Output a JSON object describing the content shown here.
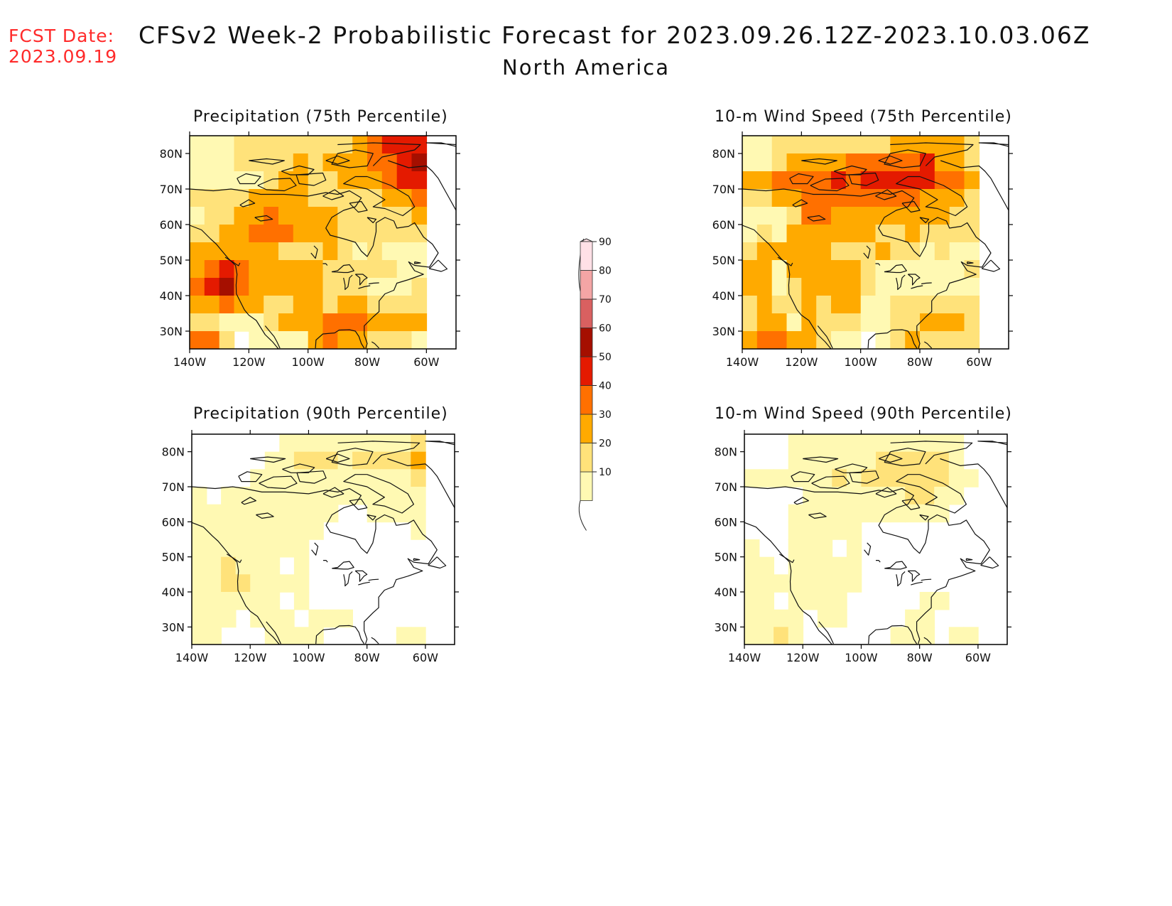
{
  "fcst_date": {
    "label": "FCST Date:",
    "value": "2023.09.19"
  },
  "title": {
    "line1": "CFSv2 Week-2 Probabilistic Forecast for 2023.09.26.12Z-2023.10.03.06Z",
    "line2": "North America"
  },
  "panels": [
    {
      "id": "precip75",
      "title": "Precipitation (75th Percentile)"
    },
    {
      "id": "wind75",
      "title": "10-m Wind Speed (75th Percentile)"
    },
    {
      "id": "precip90",
      "title": "Precipitation (90th Percentile)"
    },
    {
      "id": "wind90",
      "title": "10-m Wind Speed (90th Percentile)"
    }
  ],
  "axes": {
    "lat_labels": [
      "80N",
      "70N",
      "60N",
      "50N",
      "40N",
      "30N"
    ],
    "lat_values": [
      80,
      70,
      60,
      50,
      40,
      30
    ],
    "lon_labels": [
      "140W",
      "120W",
      "100W",
      "80W",
      "60W"
    ],
    "lon_values": [
      -140,
      -120,
      -100,
      -80,
      -60
    ],
    "lat_range": [
      25,
      85
    ],
    "lon_range": [
      -140,
      -50
    ]
  },
  "colorbar": {
    "levels": [
      "10",
      "20",
      "30",
      "40",
      "50",
      "60",
      "70",
      "80",
      "90"
    ],
    "colors": [
      "#fff9b3",
      "#ffe27a",
      "#ffaa00",
      "#ff7000",
      "#e41a00",
      "#a50f00",
      "#d96060",
      "#f4a5a5",
      "#ffe0e6"
    ]
  },
  "field_colors": {
    "0": "#ffffff",
    "1": "#fff9b3",
    "2": "#ffe27a",
    "3": "#ffaa00",
    "4": "#ff7000",
    "5": "#e41a00",
    "6": "#a50f00"
  },
  "fields": {
    "precip75": {
      "grid_lon_start": -140,
      "grid_lon_step": 5,
      "grid_lat_start": 85,
      "grid_lat_step": -5,
      "rows": [
        "1112222222234555",
        "1112222323334456",
        "1111123322333455",
        "2222333322222334",
        "1223343333222223",
        "2233444333222222",
        "3333332223212111",
        "3454333332222211",
        "4564333332221112",
        "3343322332332222",
        "2211123334443333",
        "4420111134332221",
        "3410111213321111"
      ]
    },
    "wind75": {
      "grid_lon_start": -140,
      "grid_lon_step": 5,
      "grid_lat_start": 85,
      "grid_lat_step": -5,
      "rows": [
        "1122222222333332",
        "1123333444445332",
        "3344445455555443",
        "2233444444443332",
        "1112443333333322",
        "1213333332232222",
        "2333332223221211",
        "3313333321111112",
        "3312333321111111",
        "2322323311222222",
        "2331322211223332",
        "3443321101232222",
        "3343421101232122"
      ]
    },
    "precip90": {
      "grid_lon_start": -140,
      "grid_lon_step": 5,
      "grid_lat_start": 85,
      "grid_lat_step": -5,
      "rows": [
        "0000001111111112",
        "0000011222122223",
        "0000111111111112",
        "1011111111111111",
        "1111111111001111",
        "1111111110000001",
        "1111111100000000",
        "1121110100000000",
        "1122111100000000",
        "1111110100000000",
        "1110111011100000",
        "1100011110000011",
        "1100011011000011"
      ]
    },
    "wind90": {
      "grid_lon_start": -140,
      "grid_lon_step": 5,
      "grid_lat_start": 85,
      "grid_lat_step": -5,
      "rows": [
        "0001111111111110",
        "0001111112222210",
        "1111112122222211",
        "0000111111122110",
        "0001111111111100",
        "0001111100000000",
        "1001110100000000",
        "1101111100000000",
        "1111111100000000",
        "1101111000001100",
        "1111011000011000",
        "1121000000111011",
        "1121100000100011"
      ]
    }
  },
  "coast_lines": [
    [
      [
        -140,
        70
      ],
      [
        -132,
        69.5
      ],
      [
        -126,
        70
      ],
      [
        -122,
        69.5
      ],
      [
        -116,
        68.5
      ],
      [
        -108,
        68.5
      ],
      [
        -100,
        68
      ],
      [
        -94,
        69
      ],
      [
        -90,
        68.5
      ],
      [
        -86,
        69.5
      ],
      [
        -82,
        67.5
      ],
      [
        -84,
        65
      ],
      [
        -88,
        64
      ],
      [
        -92,
        62
      ],
      [
        -94,
        59
      ],
      [
        -92.5,
        57
      ],
      [
        -88,
        56
      ],
      [
        -84,
        55
      ],
      [
        -82,
        52.5
      ],
      [
        -80,
        51
      ],
      [
        -78,
        54
      ],
      [
        -77,
        58
      ],
      [
        -77,
        60.5
      ],
      [
        -74,
        62
      ],
      [
        -71,
        61
      ],
      [
        -70,
        59
      ],
      [
        -66,
        59.5
      ],
      [
        -64,
        60.5
      ],
      [
        -61,
        56.5
      ],
      [
        -58,
        54.5
      ],
      [
        -56,
        52
      ],
      [
        -59,
        48
      ],
      [
        -64,
        48.5
      ],
      [
        -66,
        49.5
      ],
      [
        -64,
        47
      ],
      [
        -61,
        46
      ],
      [
        -66,
        44.5
      ],
      [
        -70,
        43.5
      ],
      [
        -71,
        41.5
      ],
      [
        -74,
        40.5
      ],
      [
        -76,
        38.5
      ],
      [
        -76,
        35.5
      ],
      [
        -78,
        34
      ],
      [
        -81,
        31.5
      ],
      [
        -81,
        29
      ],
      [
        -80,
        26.5
      ],
      [
        -80.5,
        25.2
      ]
    ],
    [
      [
        -140,
        59.8
      ],
      [
        -136,
        58.5
      ],
      [
        -133,
        56
      ],
      [
        -131,
        54.5
      ],
      [
        -129,
        52.5
      ],
      [
        -127,
        50.5
      ],
      [
        -124.5,
        48.5
      ],
      [
        -124,
        46
      ],
      [
        -124.3,
        43
      ],
      [
        -124.2,
        40.5
      ],
      [
        -123,
        38.5
      ],
      [
        -121.5,
        36
      ],
      [
        -120,
        34.5
      ],
      [
        -117.5,
        33
      ],
      [
        -116,
        31
      ],
      [
        -114.5,
        29
      ],
      [
        -112,
        27
      ],
      [
        -110,
        25
      ]
    ],
    [
      [
        -114.5,
        31.5
      ],
      [
        -113,
        30
      ],
      [
        -111.5,
        28.5
      ],
      [
        -110.5,
        27
      ],
      [
        -109.5,
        25.2
      ]
    ],
    [
      [
        -97.5,
        25.2
      ],
      [
        -97.3,
        27.5
      ],
      [
        -95,
        29.2
      ],
      [
        -91,
        29.5
      ],
      [
        -89.5,
        30.3
      ],
      [
        -86,
        30.4
      ],
      [
        -84,
        30
      ],
      [
        -82.8,
        28.5
      ],
      [
        -82,
        26.5
      ],
      [
        -81,
        25.2
      ]
    ],
    [
      [
        -76,
        25.2
      ],
      [
        -77.5,
        26.5
      ],
      [
        -78.5,
        27
      ]
    ],
    [
      [
        -123,
        49.2
      ],
      [
        -123.5,
        48.4
      ],
      [
        -125.5,
        49.5
      ],
      [
        -128,
        50.8
      ]
    ],
    [
      [
        -92,
        46.7
      ],
      [
        -90,
        47
      ],
      [
        -88,
        48.5
      ],
      [
        -86,
        48.7
      ],
      [
        -84.5,
        47
      ],
      [
        -86.5,
        46.5
      ],
      [
        -88,
        46.5
      ],
      [
        -92,
        46.7
      ]
    ],
    [
      [
        -88,
        45
      ],
      [
        -87.5,
        43
      ],
      [
        -87.5,
        41.7
      ],
      [
        -86.5,
        42.5
      ],
      [
        -86,
        45
      ],
      [
        -85,
        45.8
      ]
    ],
    [
      [
        -84,
        46
      ],
      [
        -82.5,
        45
      ],
      [
        -82.5,
        43
      ],
      [
        -81,
        44.5
      ],
      [
        -80,
        45
      ],
      [
        -81.5,
        46
      ],
      [
        -84,
        46
      ]
    ],
    [
      [
        -83,
        42
      ],
      [
        -81,
        42.5
      ],
      [
        -79,
        42.8
      ]
    ],
    [
      [
        -79.5,
        43.3
      ],
      [
        -78,
        43.5
      ],
      [
        -76,
        43.6
      ]
    ],
    [
      [
        -95,
        49
      ],
      [
        -94,
        49
      ],
      [
        -93.5,
        48.5
      ]
    ],
    [
      [
        -99,
        52
      ],
      [
        -97.5,
        50.5
      ],
      [
        -96.8,
        53
      ],
      [
        -98,
        54
      ]
    ],
    [
      [
        -118,
        62
      ],
      [
        -114,
        62.5
      ],
      [
        -112,
        61.5
      ],
      [
        -116,
        61
      ],
      [
        -118,
        62
      ]
    ],
    [
      [
        -123,
        65.5
      ],
      [
        -120,
        67
      ],
      [
        -118,
        66
      ],
      [
        -122,
        65
      ],
      [
        -123,
        65.5
      ]
    ],
    [
      [
        -124,
        73
      ],
      [
        -121,
        74.3
      ],
      [
        -116,
        73.5
      ],
      [
        -118,
        71.5
      ],
      [
        -123,
        71.5
      ],
      [
        -124,
        73
      ]
    ],
    [
      [
        -117,
        71
      ],
      [
        -112,
        72.8
      ],
      [
        -106,
        73
      ],
      [
        -104,
        71
      ],
      [
        -108,
        69.5
      ],
      [
        -114,
        69.8
      ],
      [
        -117,
        71
      ]
    ],
    [
      [
        -109,
        75
      ],
      [
        -103,
        76.5
      ],
      [
        -98,
        75.5
      ],
      [
        -100,
        74
      ],
      [
        -106,
        74
      ],
      [
        -109,
        75
      ]
    ],
    [
      [
        -104,
        74
      ],
      [
        -95,
        74.5
      ],
      [
        -94,
        72.5
      ],
      [
        -98,
        71
      ],
      [
        -103,
        71.5
      ],
      [
        -104,
        74
      ]
    ],
    [
      [
        -90,
        80
      ],
      [
        -84,
        81
      ],
      [
        -78,
        80
      ],
      [
        -80,
        76.5
      ],
      [
        -86,
        76
      ],
      [
        -92,
        77
      ],
      [
        -90,
        80
      ]
    ],
    [
      [
        -80,
        73.5
      ],
      [
        -72,
        71
      ],
      [
        -66,
        68
      ],
      [
        -64,
        65
      ],
      [
        -68,
        62.5
      ],
      [
        -74,
        64.5
      ],
      [
        -78,
        65
      ],
      [
        -74,
        67
      ],
      [
        -80,
        70
      ],
      [
        -88,
        71.5
      ],
      [
        -84,
        73.5
      ],
      [
        -80,
        73.5
      ]
    ],
    [
      [
        -90,
        82.5
      ],
      [
        -78,
        83
      ],
      [
        -62,
        82.5
      ],
      [
        -64,
        81
      ],
      [
        -75,
        79
      ],
      [
        -78,
        76.5
      ]
    ],
    [
      [
        -73,
        78
      ],
      [
        -66,
        76
      ],
      [
        -60,
        76.5
      ],
      [
        -58,
        75
      ],
      [
        -56,
        73
      ],
      [
        -54,
        70
      ],
      [
        -52,
        67
      ],
      [
        -50,
        64
      ]
    ],
    [
      [
        -86,
        66
      ],
      [
        -82,
        66.5
      ],
      [
        -80,
        64
      ],
      [
        -83,
        63.5
      ],
      [
        -86,
        66
      ]
    ],
    [
      [
        -80,
        62
      ],
      [
        -78,
        60.5
      ],
      [
        -77,
        61.5
      ],
      [
        -80,
        62
      ]
    ],
    [
      [
        -64,
        49.5
      ],
      [
        -62,
        49.2
      ],
      [
        -64,
        49
      ],
      [
        -64,
        49.5
      ]
    ],
    [
      [
        -95,
        68
      ],
      [
        -91,
        69.8
      ],
      [
        -88,
        68
      ],
      [
        -92,
        67
      ],
      [
        -95,
        68
      ]
    ],
    [
      [
        -94,
        78
      ],
      [
        -90,
        79.3
      ],
      [
        -86,
        78
      ],
      [
        -90,
        77
      ],
      [
        -94,
        78
      ]
    ],
    [
      [
        -120,
        78
      ],
      [
        -114,
        78.5
      ],
      [
        -108,
        78
      ],
      [
        -112,
        77
      ],
      [
        -120,
        78
      ]
    ],
    [
      [
        -56,
        50
      ],
      [
        -53,
        47.5
      ],
      [
        -55,
        46.8
      ],
      [
        -59,
        47.6
      ],
      [
        -56,
        50
      ]
    ],
    [
      [
        -50,
        82
      ],
      [
        -55,
        83
      ],
      [
        -60,
        83
      ],
      [
        -50,
        82.5
      ]
    ]
  ]
}
